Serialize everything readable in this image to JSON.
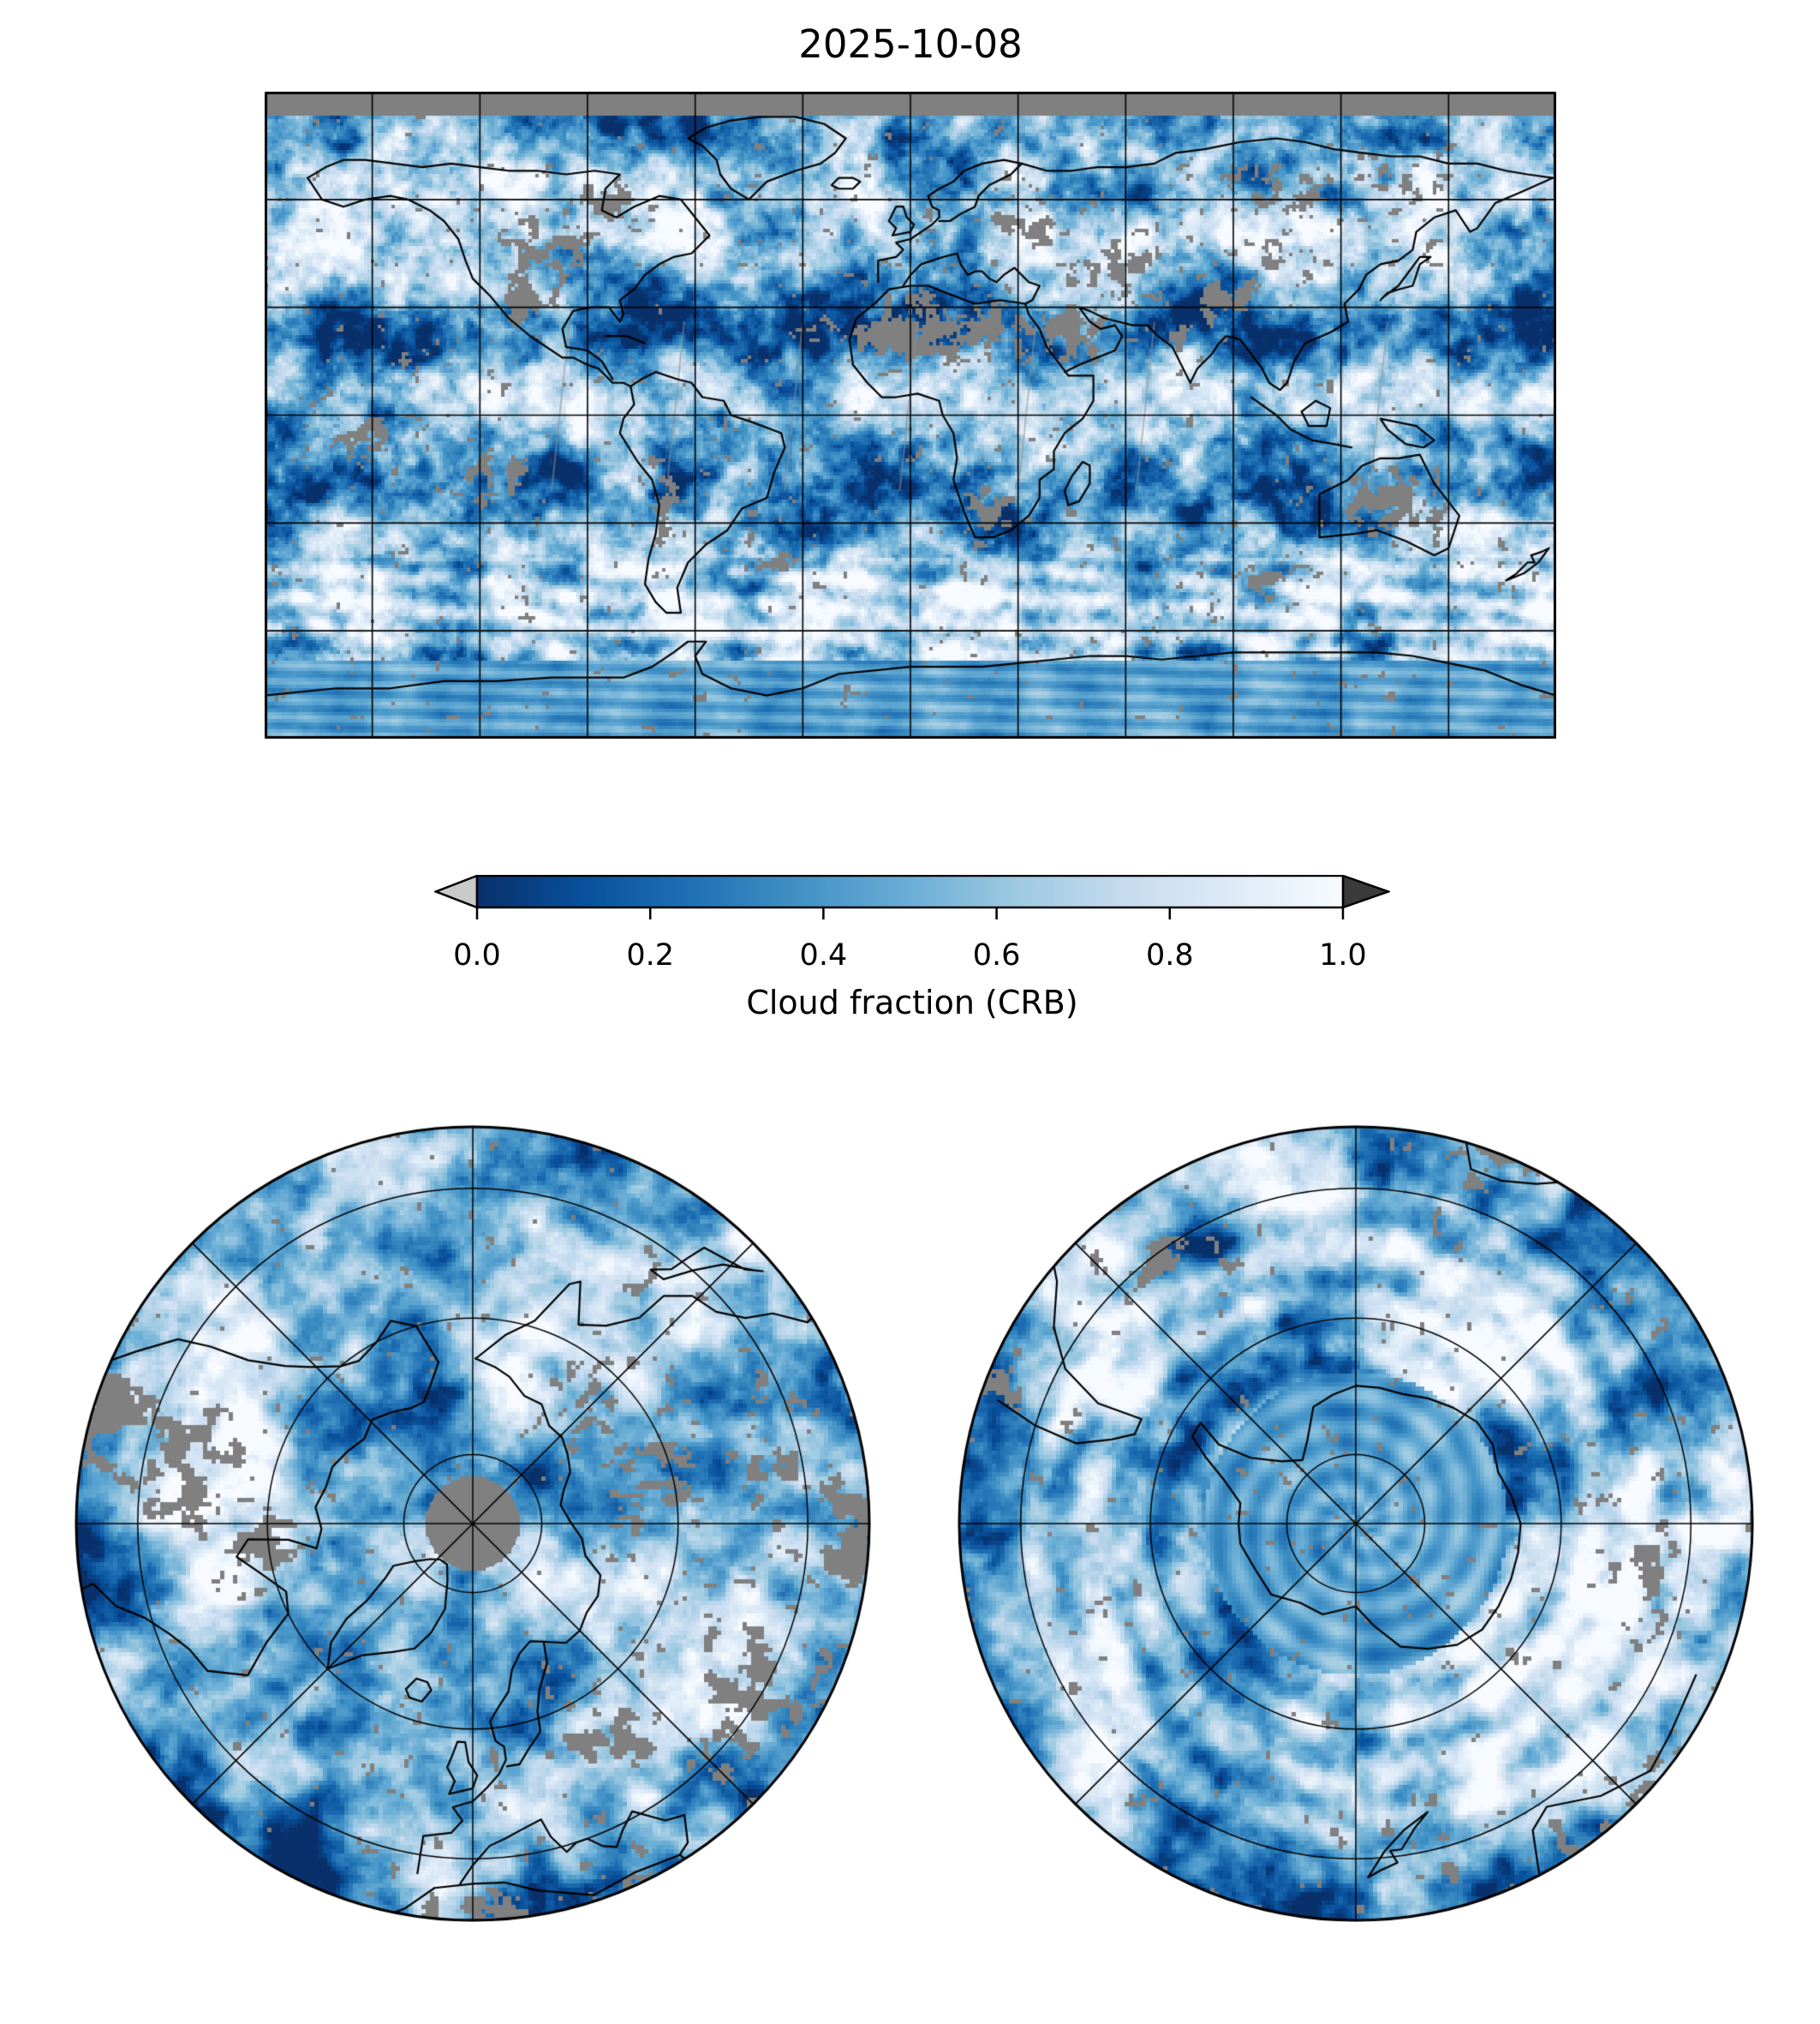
{
  "figure": {
    "title": "2025-10-08",
    "background": "#ffffff"
  },
  "colorbar": {
    "label": "Cloud fraction (CRB)",
    "ticks": [
      "0.0",
      "0.2",
      "0.4",
      "0.6",
      "0.8",
      "1.0"
    ],
    "gradient_stops": [
      "#08306b",
      "#08519c",
      "#2171b5",
      "#4292c6",
      "#6baed6",
      "#9ecae1",
      "#c6dbef",
      "#deebf7",
      "#f7fbff"
    ],
    "under_arrow_color": "#c9c9c9",
    "over_arrow_color": "#3a3a3a",
    "outline_color": "#000000"
  },
  "map_style": {
    "nodata_color": "#808080",
    "coastline_color": "#000000",
    "gridline_color": "#000000",
    "orbit_gap_color": "#909090"
  },
  "chart_data": {
    "type": "heatmap",
    "title": "2025-10-08",
    "variable": "Cloud fraction (CRB)",
    "value_range": [
      0.0,
      1.0
    ],
    "colorbar_ticks": [
      0.0,
      0.2,
      0.4,
      0.6,
      0.8,
      1.0
    ],
    "colormap": "Blues_r",
    "colormap_meaning": "0 = dark blue (clear sky), 1 = white (fully cloudy)",
    "missing_data": "gray #808080: polar-night band north of ~83N, satellite orbit-gap streaks, scattered retrieval gaps over deserts and land",
    "legend_position": "horizontal colorbar below global map, extend arrows both ends",
    "panels": [
      {
        "name": "global-cloud-map",
        "projection": "equirectangular",
        "lon_range": [
          -180,
          180
        ],
        "lat_range": [
          -90,
          90
        ],
        "gridline_spacing_deg": 30,
        "coastlines": true
      },
      {
        "name": "arctic-polar-map",
        "projection": "north-polar azimuthal equal-area",
        "edge_latitude": 30,
        "latitude_rings": [
          80,
          60,
          40
        ],
        "meridian_spacing_deg": 45,
        "pole_data_hole_latitude": 83.5
      },
      {
        "name": "antarctic-polar-map",
        "projection": "south-polar azimuthal equal-area",
        "edge_latitude": -30,
        "latitude_rings": [
          -80,
          -60,
          -40
        ],
        "meridian_spacing_deg": 45,
        "pole_data_hole_latitude": null
      }
    ],
    "notable_features": [
      "bright ITCZ cloud band near the equator",
      "dark-blue clear subtropical zones in both hemispheres",
      "white midlatitude storm systems over North Pacific and North Atlantic",
      "banded wavy cloud field over the Southern Ocean",
      "moderate uniform cloudiness over the Antarctic interior with radial artifacts"
    ]
  }
}
